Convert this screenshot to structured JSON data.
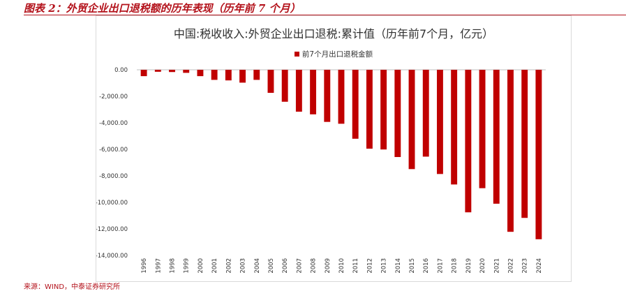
{
  "figure_title": "图表 2：外贸企业出口退税额的历年表现（历年前 7 个月）",
  "source_note": "来源：WIND，中泰证券研究所",
  "colors": {
    "bar": "#c00000",
    "accent": "#b3111a"
  },
  "chart_data": {
    "type": "bar",
    "title": "中国:税收收入:外贸企业出口退税:累计值（历年前7个月，亿元）",
    "legend": "前7个月出口退税金额",
    "xlabel": "",
    "ylabel": "",
    "ylim": [
      -14000,
      0
    ],
    "yticks": [
      0,
      -2000,
      -4000,
      -6000,
      -8000,
      -10000,
      -12000,
      -14000
    ],
    "ytick_labels": [
      "0.00",
      "-2,000.00",
      "-4,000.00",
      "-6,000.00",
      "-8,000.00",
      "-10,000.00",
      "-12,000.00",
      "-14,000.00"
    ],
    "categories": [
      "1996",
      "1997",
      "1998",
      "1999",
      "2000",
      "2001",
      "2002",
      "2003",
      "2004",
      "2005",
      "2006",
      "2007",
      "2008",
      "2009",
      "2010",
      "2011",
      "2012",
      "2013",
      "2014",
      "2015",
      "2016",
      "2017",
      "2018",
      "2019",
      "2020",
      "2021",
      "2022",
      "2023",
      "2024"
    ],
    "values": [
      -480,
      -150,
      -170,
      -230,
      -480,
      -760,
      -800,
      -970,
      -760,
      -1740,
      -2410,
      -3160,
      -3360,
      -3930,
      -4070,
      -5200,
      -5950,
      -6010,
      -6580,
      -7490,
      -6550,
      -7860,
      -8650,
      -10750,
      -8930,
      -10100,
      -12220,
      -11170,
      -12780
    ]
  }
}
